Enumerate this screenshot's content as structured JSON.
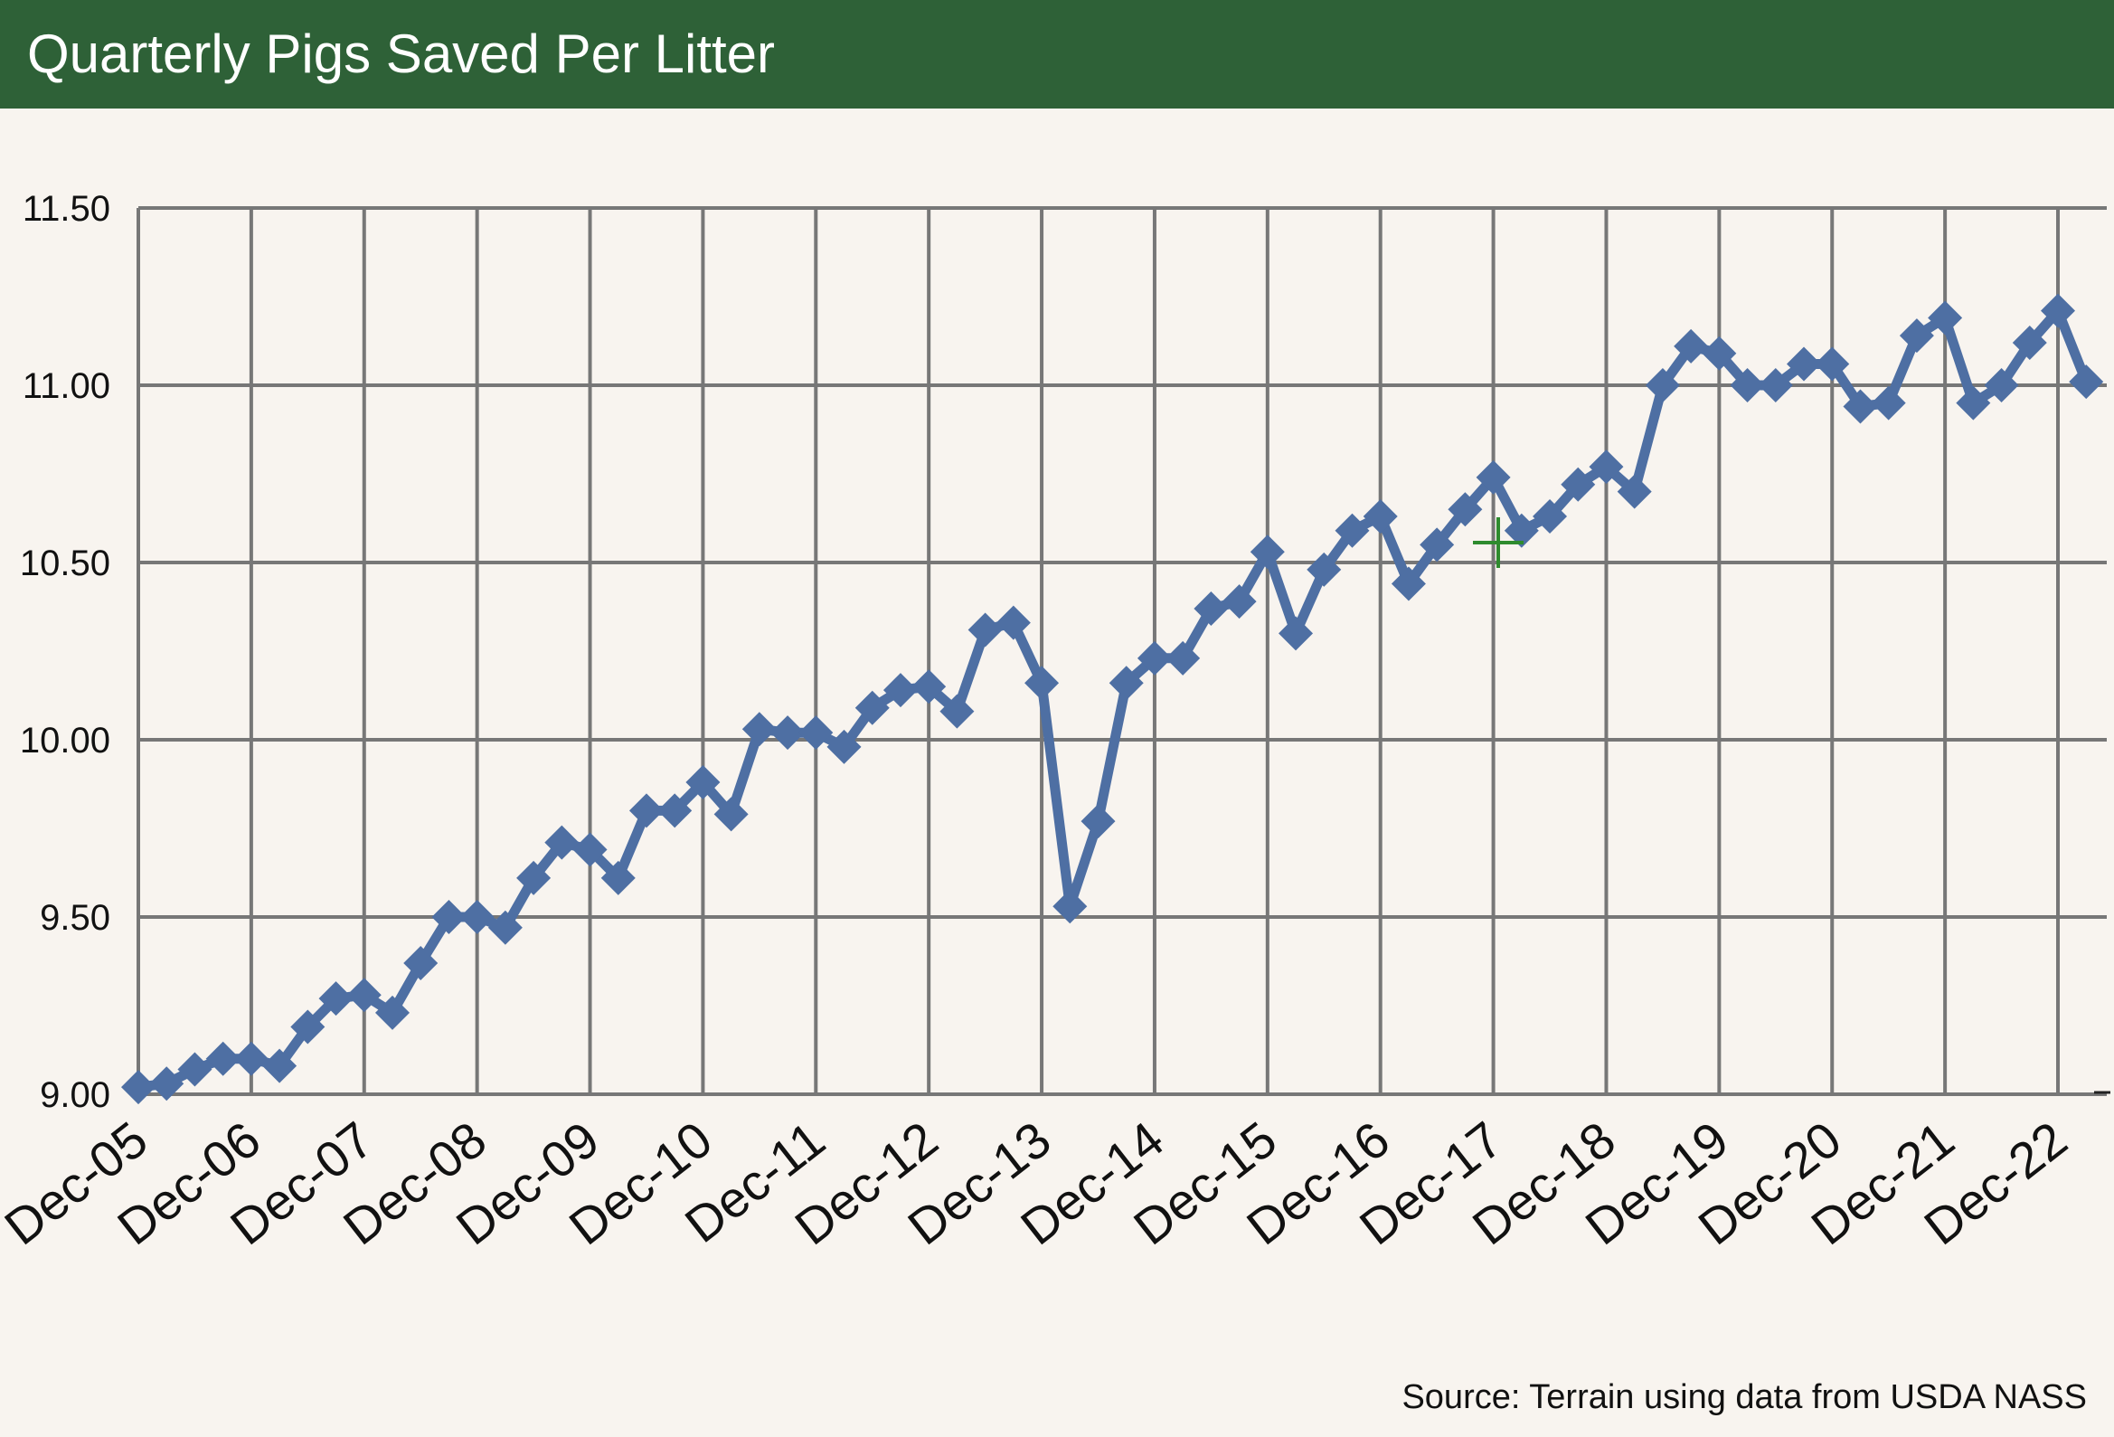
{
  "header": {
    "title": "Quarterly Pigs Saved Per Litter"
  },
  "footer": {
    "source": "Source: Terrain using data from USDA NASS"
  },
  "colors": {
    "header_bg": "#2e6137",
    "line": "#4e6fa3",
    "grid": "#777777",
    "background": "#f8f4ef"
  },
  "chart_data": {
    "type": "line",
    "title": "Quarterly Pigs Saved Per Litter",
    "xlabel": "",
    "ylabel": "",
    "ylim": [
      9.0,
      11.5
    ],
    "y_ticks": [
      "9.00",
      "9.50",
      "10.00",
      "10.50",
      "11.00",
      "11.50"
    ],
    "x_tick_labels": [
      "Dec-05",
      "Dec-06",
      "Dec-07",
      "Dec-08",
      "Dec-09",
      "Dec-10",
      "Dec-11",
      "Dec-12",
      "Dec-13",
      "Dec-14",
      "Dec-15",
      "Dec-16",
      "Dec-17",
      "Dec-18",
      "Dec-19",
      "Dec-20",
      "Dec-21",
      "Dec-22"
    ],
    "grid": true,
    "series": [
      {
        "values": [
          9.02,
          9.03,
          9.07,
          9.1,
          9.1,
          9.08,
          9.19,
          9.27,
          9.28,
          9.23,
          9.37,
          9.5,
          9.5,
          9.47,
          9.61,
          9.71,
          9.69,
          9.61,
          9.8,
          9.8,
          9.88,
          9.79,
          10.03,
          10.02,
          10.02,
          9.98,
          10.09,
          10.14,
          10.15,
          10.08,
          10.31,
          10.33,
          10.16,
          9.53,
          9.77,
          10.16,
          10.23,
          10.23,
          10.37,
          10.39,
          10.53,
          10.3,
          10.48,
          10.59,
          10.63,
          10.44,
          10.55,
          10.65,
          10.74,
          10.59,
          10.63,
          10.72,
          10.77,
          10.7,
          11.0,
          11.11,
          11.09,
          11.0,
          11.0,
          11.06,
          11.06,
          10.94,
          10.95,
          11.14,
          11.19,
          10.95,
          11.0,
          11.12,
          11.21,
          11.01
        ]
      }
    ]
  }
}
